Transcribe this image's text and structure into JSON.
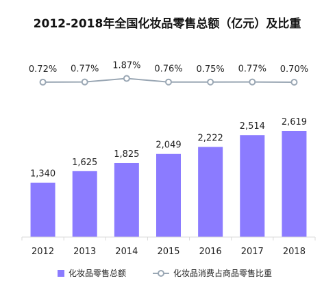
{
  "chart_data": {
    "type": "bar",
    "title": "2012-2018年全国化妆品零售总额（亿元）及比重",
    "categories": [
      "2012",
      "2013",
      "2014",
      "2015",
      "2016",
      "2017",
      "2018"
    ],
    "series": [
      {
        "name": "化妆品零售总额",
        "type": "bar",
        "values": [
          1340,
          1625,
          1825,
          2049,
          2222,
          2514,
          2619
        ],
        "labels": [
          "1,340",
          "1,625",
          "1,825",
          "2,049",
          "2,222",
          "2,514",
          "2,619"
        ],
        "color": "#8B7BFF"
      },
      {
        "name": "化妆品消费占商品零售比重",
        "type": "line",
        "values": [
          0.72,
          0.77,
          1.87,
          0.76,
          0.75,
          0.77,
          0.7
        ],
        "labels": [
          "0.72%",
          "0.77%",
          "1.87%",
          "0.76%",
          "0.75%",
          "0.77%",
          "0.70%"
        ],
        "color": "#9AA7B4"
      }
    ],
    "ylim": [
      0,
      3000
    ],
    "y2lim": [
      0,
      2
    ],
    "grid": false,
    "legend": "bottom"
  }
}
